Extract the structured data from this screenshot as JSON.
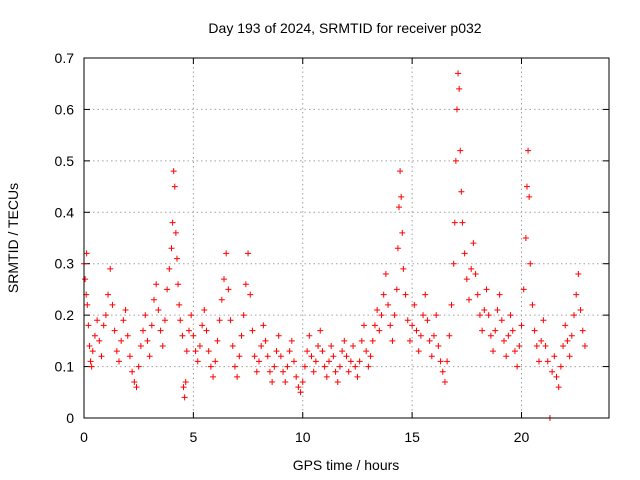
{
  "chart_data": {
    "type": "scatter",
    "title": "Day 193 of 2024, SRMTID for receiver p032",
    "xlabel": "GPS time / hours",
    "ylabel": "SRMTID / TECUs",
    "xlim": [
      0,
      24
    ],
    "ylim": [
      0,
      0.7
    ],
    "xticks": [
      0,
      5,
      10,
      15,
      20
    ],
    "xtick_labels": [
      "0",
      "5",
      "10",
      "15",
      "20"
    ],
    "yticks": [
      0,
      0.1,
      0.2,
      0.3,
      0.4,
      0.5,
      0.6,
      0.7
    ],
    "ytick_labels": [
      "0",
      "0.1",
      "0.2",
      "0.3",
      "0.4",
      "0.5",
      "0.6",
      "0.7"
    ],
    "grid": true,
    "marker": "+",
    "color": "#ff0000",
    "series": [
      {
        "name": "SRMTID p032",
        "points": [
          [
            0.0,
            0.3
          ],
          [
            0.05,
            0.27
          ],
          [
            0.1,
            0.24
          ],
          [
            0.12,
            0.32
          ],
          [
            0.15,
            0.22
          ],
          [
            0.2,
            0.18
          ],
          [
            0.25,
            0.14
          ],
          [
            0.3,
            0.11
          ],
          [
            0.35,
            0.1
          ],
          [
            0.4,
            0.13
          ],
          [
            0.5,
            0.16
          ],
          [
            0.6,
            0.19
          ],
          [
            0.7,
            0.15
          ],
          [
            0.8,
            0.12
          ],
          [
            0.9,
            0.18
          ],
          [
            1.0,
            0.2
          ],
          [
            1.1,
            0.24
          ],
          [
            1.2,
            0.29
          ],
          [
            1.3,
            0.22
          ],
          [
            1.4,
            0.17
          ],
          [
            1.5,
            0.13
          ],
          [
            1.6,
            0.11
          ],
          [
            1.7,
            0.15
          ],
          [
            1.8,
            0.19
          ],
          [
            1.9,
            0.21
          ],
          [
            2.0,
            0.16
          ],
          [
            2.1,
            0.12
          ],
          [
            2.2,
            0.09
          ],
          [
            2.3,
            0.07
          ],
          [
            2.4,
            0.06
          ],
          [
            2.5,
            0.1
          ],
          [
            2.6,
            0.14
          ],
          [
            2.7,
            0.17
          ],
          [
            2.8,
            0.2
          ],
          [
            2.9,
            0.15
          ],
          [
            3.0,
            0.12
          ],
          [
            3.1,
            0.18
          ],
          [
            3.2,
            0.23
          ],
          [
            3.3,
            0.26
          ],
          [
            3.4,
            0.21
          ],
          [
            3.5,
            0.17
          ],
          [
            3.6,
            0.14
          ],
          [
            3.7,
            0.19
          ],
          [
            3.8,
            0.25
          ],
          [
            3.9,
            0.29
          ],
          [
            4.0,
            0.33
          ],
          [
            4.05,
            0.38
          ],
          [
            4.1,
            0.48
          ],
          [
            4.15,
            0.45
          ],
          [
            4.2,
            0.36
          ],
          [
            4.25,
            0.31
          ],
          [
            4.3,
            0.26
          ],
          [
            4.35,
            0.22
          ],
          [
            4.4,
            0.19
          ],
          [
            4.5,
            0.16
          ],
          [
            4.55,
            0.06
          ],
          [
            4.6,
            0.04
          ],
          [
            4.65,
            0.07
          ],
          [
            4.7,
            0.13
          ],
          [
            4.8,
            0.17
          ],
          [
            4.9,
            0.2
          ],
          [
            5.0,
            0.16
          ],
          [
            5.1,
            0.13
          ],
          [
            5.2,
            0.11
          ],
          [
            5.3,
            0.14
          ],
          [
            5.4,
            0.18
          ],
          [
            5.5,
            0.21
          ],
          [
            5.6,
            0.17
          ],
          [
            5.7,
            0.13
          ],
          [
            5.8,
            0.1
          ],
          [
            5.9,
            0.08
          ],
          [
            6.0,
            0.11
          ],
          [
            6.1,
            0.15
          ],
          [
            6.2,
            0.19
          ],
          [
            6.3,
            0.23
          ],
          [
            6.4,
            0.27
          ],
          [
            6.5,
            0.32
          ],
          [
            6.6,
            0.25
          ],
          [
            6.7,
            0.19
          ],
          [
            6.8,
            0.14
          ],
          [
            6.9,
            0.1
          ],
          [
            7.0,
            0.08
          ],
          [
            7.1,
            0.12
          ],
          [
            7.2,
            0.16
          ],
          [
            7.3,
            0.2
          ],
          [
            7.4,
            0.26
          ],
          [
            7.5,
            0.32
          ],
          [
            7.6,
            0.24
          ],
          [
            7.7,
            0.17
          ],
          [
            7.8,
            0.12
          ],
          [
            7.9,
            0.09
          ],
          [
            8.0,
            0.11
          ],
          [
            8.1,
            0.14
          ],
          [
            8.2,
            0.18
          ],
          [
            8.3,
            0.15
          ],
          [
            8.4,
            0.12
          ],
          [
            8.5,
            0.09
          ],
          [
            8.6,
            0.07
          ],
          [
            8.7,
            0.1
          ],
          [
            8.8,
            0.13
          ],
          [
            8.9,
            0.16
          ],
          [
            9.0,
            0.12
          ],
          [
            9.1,
            0.09
          ],
          [
            9.2,
            0.07
          ],
          [
            9.3,
            0.1
          ],
          [
            9.4,
            0.13
          ],
          [
            9.5,
            0.15
          ],
          [
            9.6,
            0.11
          ],
          [
            9.7,
            0.08
          ],
          [
            9.8,
            0.06
          ],
          [
            9.9,
            0.05
          ],
          [
            10.0,
            0.07
          ],
          [
            10.1,
            0.1
          ],
          [
            10.2,
            0.13
          ],
          [
            10.3,
            0.16
          ],
          [
            10.4,
            0.12
          ],
          [
            10.5,
            0.09
          ],
          [
            10.6,
            0.11
          ],
          [
            10.7,
            0.14
          ],
          [
            10.8,
            0.17
          ],
          [
            10.9,
            0.13
          ],
          [
            11.0,
            0.1
          ],
          [
            11.1,
            0.08
          ],
          [
            11.2,
            0.11
          ],
          [
            11.3,
            0.14
          ],
          [
            11.4,
            0.12
          ],
          [
            11.5,
            0.09
          ],
          [
            11.6,
            0.07
          ],
          [
            11.7,
            0.1
          ],
          [
            11.8,
            0.13
          ],
          [
            11.9,
            0.15
          ],
          [
            12.0,
            0.12
          ],
          [
            12.1,
            0.09
          ],
          [
            12.2,
            0.11
          ],
          [
            12.3,
            0.14
          ],
          [
            12.4,
            0.1
          ],
          [
            12.5,
            0.08
          ],
          [
            12.6,
            0.11
          ],
          [
            12.7,
            0.15
          ],
          [
            12.8,
            0.18
          ],
          [
            12.9,
            0.13
          ],
          [
            13.0,
            0.1
          ],
          [
            13.1,
            0.12
          ],
          [
            13.2,
            0.15
          ],
          [
            13.3,
            0.18
          ],
          [
            13.4,
            0.21
          ],
          [
            13.5,
            0.17
          ],
          [
            13.6,
            0.2
          ],
          [
            13.7,
            0.24
          ],
          [
            13.8,
            0.28
          ],
          [
            13.9,
            0.22
          ],
          [
            14.0,
            0.18
          ],
          [
            14.1,
            0.15
          ],
          [
            14.2,
            0.2
          ],
          [
            14.3,
            0.25
          ],
          [
            14.35,
            0.33
          ],
          [
            14.4,
            0.41
          ],
          [
            14.45,
            0.48
          ],
          [
            14.5,
            0.43
          ],
          [
            14.55,
            0.36
          ],
          [
            14.6,
            0.29
          ],
          [
            14.7,
            0.24
          ],
          [
            14.8,
            0.19
          ],
          [
            14.9,
            0.15
          ],
          [
            15.0,
            0.18
          ],
          [
            15.1,
            0.22
          ],
          [
            15.2,
            0.17
          ],
          [
            15.3,
            0.13
          ],
          [
            15.4,
            0.16
          ],
          [
            15.5,
            0.2
          ],
          [
            15.6,
            0.24
          ],
          [
            15.7,
            0.19
          ],
          [
            15.8,
            0.15
          ],
          [
            15.9,
            0.12
          ],
          [
            16.0,
            0.16
          ],
          [
            16.1,
            0.2
          ],
          [
            16.2,
            0.14
          ],
          [
            16.3,
            0.11
          ],
          [
            16.4,
            0.09
          ],
          [
            16.5,
            0.07
          ],
          [
            16.6,
            0.11
          ],
          [
            16.7,
            0.16
          ],
          [
            16.8,
            0.22
          ],
          [
            16.9,
            0.3
          ],
          [
            16.95,
            0.38
          ],
          [
            17.0,
            0.5
          ],
          [
            17.05,
            0.6
          ],
          [
            17.1,
            0.67
          ],
          [
            17.15,
            0.64
          ],
          [
            17.2,
            0.52
          ],
          [
            17.25,
            0.44
          ],
          [
            17.3,
            0.38
          ],
          [
            17.4,
            0.32
          ],
          [
            17.5,
            0.27
          ],
          [
            17.6,
            0.23
          ],
          [
            17.7,
            0.29
          ],
          [
            17.8,
            0.34
          ],
          [
            17.9,
            0.28
          ],
          [
            18.0,
            0.24
          ],
          [
            18.1,
            0.2
          ],
          [
            18.2,
            0.17
          ],
          [
            18.3,
            0.21
          ],
          [
            18.4,
            0.25
          ],
          [
            18.5,
            0.2
          ],
          [
            18.6,
            0.16
          ],
          [
            18.7,
            0.13
          ],
          [
            18.8,
            0.17
          ],
          [
            18.9,
            0.21
          ],
          [
            19.0,
            0.24
          ],
          [
            19.1,
            0.19
          ],
          [
            19.2,
            0.15
          ],
          [
            19.3,
            0.12
          ],
          [
            19.4,
            0.16
          ],
          [
            19.5,
            0.2
          ],
          [
            19.6,
            0.17
          ],
          [
            19.7,
            0.13
          ],
          [
            19.8,
            0.1
          ],
          [
            19.9,
            0.14
          ],
          [
            20.0,
            0.18
          ],
          [
            20.1,
            0.25
          ],
          [
            20.2,
            0.35
          ],
          [
            20.25,
            0.45
          ],
          [
            20.3,
            0.52
          ],
          [
            20.35,
            0.43
          ],
          [
            20.4,
            0.3
          ],
          [
            20.5,
            0.22
          ],
          [
            20.6,
            0.17
          ],
          [
            20.7,
            0.14
          ],
          [
            20.8,
            0.11
          ],
          [
            20.9,
            0.15
          ],
          [
            21.0,
            0.19
          ],
          [
            21.1,
            0.14
          ],
          [
            21.2,
            0.11
          ],
          [
            21.3,
            0.0
          ],
          [
            21.4,
            0.09
          ],
          [
            21.5,
            0.12
          ],
          [
            21.6,
            0.08
          ],
          [
            21.7,
            0.06
          ],
          [
            21.8,
            0.1
          ],
          [
            21.9,
            0.14
          ],
          [
            22.0,
            0.18
          ],
          [
            22.1,
            0.15
          ],
          [
            22.2,
            0.12
          ],
          [
            22.3,
            0.16
          ],
          [
            22.4,
            0.2
          ],
          [
            22.5,
            0.24
          ],
          [
            22.6,
            0.28
          ],
          [
            22.7,
            0.21
          ],
          [
            22.8,
            0.17
          ],
          [
            22.9,
            0.14
          ]
        ]
      }
    ]
  }
}
